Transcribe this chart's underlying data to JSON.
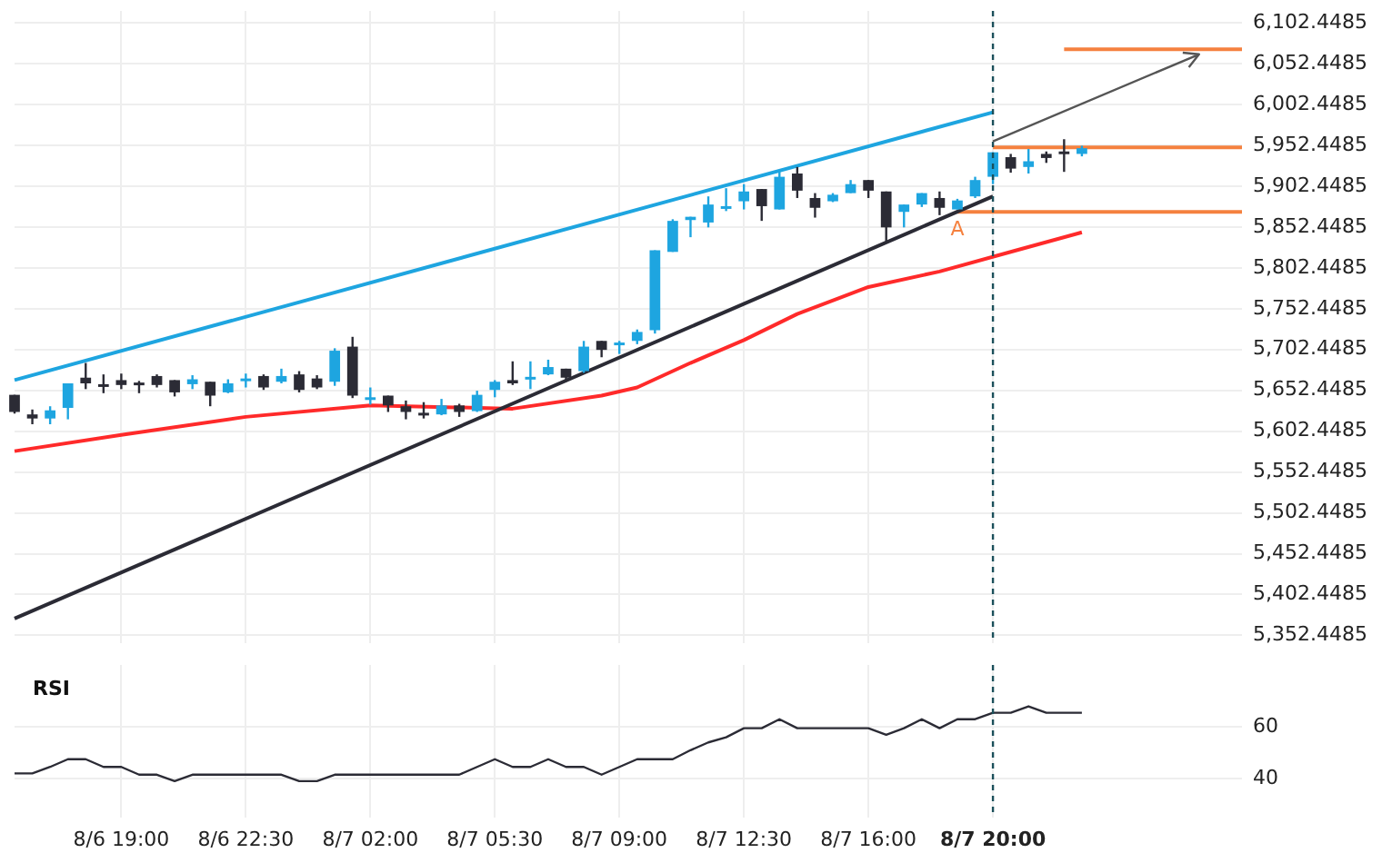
{
  "chart_data": [
    {
      "type": "candlestick",
      "categories": [
        null,
        null,
        null,
        null,
        null,
        null,
        "8/6 19:00",
        null,
        null,
        null,
        null,
        null,
        null,
        "8/6 22:30",
        null,
        null,
        null,
        null,
        null,
        null,
        "8/7 02:00",
        null,
        null,
        null,
        null,
        null,
        null,
        "8/7 05:30",
        null,
        null,
        null,
        null,
        null,
        null,
        "8/7 09:00",
        null,
        null,
        null,
        null,
        null,
        null,
        "8/7 12:30",
        null,
        null,
        null,
        null,
        null,
        null,
        "8/7 16:00",
        null,
        null,
        null,
        null,
        null,
        null,
        "8/7 20:00",
        null,
        null,
        null,
        null,
        null,
        null,
        null,
        null,
        null,
        null,
        null,
        null,
        null,
        null
      ],
      "ohlc": [
        [
          5647,
          5647,
          5624,
          5626
        ],
        [
          5623,
          5629,
          5611,
          5618
        ],
        [
          5618,
          5633,
          5611,
          5628
        ],
        [
          5631,
          5661,
          5617,
          5661
        ],
        [
          5668,
          5686,
          5654,
          5661
        ],
        [
          5660,
          5672,
          5649,
          5659
        ],
        [
          5665,
          5673,
          5654,
          5659
        ],
        [
          5662,
          5664,
          5649,
          5661
        ],
        [
          5670,
          5672,
          5656,
          5659
        ],
        [
          5665,
          5665,
          5645,
          5650
        ],
        [
          5660,
          5671,
          5654,
          5666
        ],
        [
          5663,
          5663,
          5633,
          5646
        ],
        [
          5650,
          5666,
          5649,
          5661
        ],
        [
          5665,
          5673,
          5656,
          5667
        ],
        [
          5670,
          5672,
          5653,
          5656
        ],
        [
          5663,
          5679,
          5661,
          5670
        ],
        [
          5672,
          5676,
          5650,
          5653
        ],
        [
          5667,
          5671,
          5654,
          5656
        ],
        [
          5663,
          5704,
          5658,
          5701
        ],
        [
          5706,
          5718,
          5643,
          5646
        ],
        [
          5642,
          5656,
          5635,
          5644
        ],
        [
          5646,
          5646,
          5626,
          5634
        ],
        [
          5633,
          5640,
          5617,
          5626
        ],
        [
          5625,
          5638,
          5618,
          5624
        ],
        [
          5623,
          5642,
          5622,
          5634
        ],
        [
          5634,
          5636,
          5620,
          5626
        ],
        [
          5627,
          5652,
          5626,
          5647
        ],
        [
          5653,
          5665,
          5644,
          5663
        ],
        [
          5665,
          5688,
          5659,
          5661
        ],
        [
          5667,
          5688,
          5654,
          5669
        ],
        [
          5672,
          5690,
          5671,
          5681
        ],
        [
          5679,
          5679,
          5663,
          5668
        ],
        [
          5676,
          5713,
          5674,
          5706
        ],
        [
          5713,
          5713,
          5693,
          5702
        ],
        [
          5710,
          5713,
          5697,
          5711
        ],
        [
          5713,
          5727,
          5709,
          5724
        ],
        [
          5726,
          5824,
          5722,
          5824
        ],
        [
          5822,
          5862,
          5822,
          5860
        ],
        [
          5861,
          5865,
          5840,
          5865
        ],
        [
          5858,
          5890,
          5852,
          5880
        ],
        [
          5876,
          5900,
          5872,
          5878
        ],
        [
          5884,
          5905,
          5874,
          5896
        ],
        [
          5899,
          5899,
          5860,
          5878
        ],
        [
          5874,
          5921,
          5874,
          5914
        ],
        [
          5918,
          5926,
          5888,
          5897
        ],
        [
          5888,
          5894,
          5864,
          5876
        ],
        [
          5884,
          5894,
          5883,
          5892
        ],
        [
          5894,
          5910,
          5894,
          5905
        ],
        [
          5910,
          5910,
          5888,
          5897
        ],
        [
          5896,
          5896,
          5835,
          5852
        ],
        [
          5871,
          5880,
          5852,
          5880
        ],
        [
          5880,
          5894,
          5877,
          5894
        ],
        [
          5888,
          5896,
          5867,
          5876
        ],
        [
          5874,
          5887,
          5874,
          5885
        ],
        [
          5890,
          5914,
          5888,
          5910
        ],
        [
          5914,
          5944,
          5905,
          5944
        ],
        [
          5938,
          5942,
          5919,
          5924
        ],
        [
          5926,
          5948,
          5918,
          5933
        ],
        [
          5942,
          5945,
          5931,
          5937
        ],
        [
          5945,
          5960,
          5920,
          5944
        ],
        [
          5942,
          5952,
          5939,
          5949
        ],
        null,
        null,
        null,
        null,
        null,
        null,
        null,
        null,
        null
      ],
      "colors": [
        "#2b2b35",
        "#2b2b35",
        "#1ea5e0",
        "#1ea5e0",
        "#2b2b35",
        "#2b2b35",
        "#2b2b35",
        "#2b2b35",
        "#2b2b35",
        "#2b2b35",
        "#1ea5e0",
        "#2b2b35",
        "#1ea5e0",
        "#1ea5e0",
        "#2b2b35",
        "#1ea5e0",
        "#2b2b35",
        "#2b2b35",
        "#1ea5e0",
        "#2b2b35",
        "#1ea5e0",
        "#2b2b35",
        "#2b2b35",
        "#2b2b35",
        "#1ea5e0",
        "#2b2b35",
        "#1ea5e0",
        "#1ea5e0",
        "#2b2b35",
        "#1ea5e0",
        "#1ea5e0",
        "#2b2b35",
        "#1ea5e0",
        "#2b2b35",
        "#1ea5e0",
        "#1ea5e0",
        "#1ea5e0",
        "#1ea5e0",
        "#1ea5e0",
        "#1ea5e0",
        "#1ea5e0",
        "#1ea5e0",
        "#2b2b35",
        "#1ea5e0",
        "#2b2b35",
        "#2b2b35",
        "#1ea5e0",
        "#1ea5e0",
        "#2b2b35",
        "#2b2b35",
        "#1ea5e0",
        "#1ea5e0",
        "#2b2b35",
        "#1ea5e0",
        "#1ea5e0",
        "#1ea5e0",
        "#2b2b35",
        "#1ea5e0",
        "#2b2b35",
        "#2b2b35",
        "#1ea5e0",
        null,
        null,
        null,
        null,
        null,
        null,
        null,
        null,
        null
      ],
      "series": [
        {
          "type": "line",
          "color": "#1ea5e0",
          "values": [
            5665,
            null,
            null,
            null,
            null,
            null,
            null,
            null,
            null,
            null,
            null,
            null,
            null,
            null,
            null,
            null,
            null,
            null,
            null,
            null,
            null,
            null,
            null,
            null,
            null,
            null,
            null,
            null,
            null,
            null,
            null,
            null,
            null,
            null,
            null,
            null,
            null,
            null,
            null,
            null,
            null,
            null,
            null,
            null,
            null,
            null,
            null,
            null,
            null,
            null,
            null,
            null,
            null,
            null,
            null,
            5993,
            null,
            null,
            null,
            null,
            null,
            null,
            null,
            null,
            null,
            null,
            null,
            null,
            null,
            null
          ]
        },
        {
          "type": "line",
          "color": "#2b2b35",
          "values": [
            5373,
            null,
            null,
            null,
            null,
            null,
            null,
            null,
            null,
            null,
            null,
            null,
            null,
            null,
            null,
            null,
            null,
            null,
            null,
            null,
            null,
            null,
            null,
            null,
            null,
            null,
            null,
            null,
            null,
            null,
            null,
            null,
            null,
            null,
            null,
            null,
            null,
            null,
            null,
            null,
            null,
            null,
            null,
            null,
            null,
            null,
            null,
            null,
            null,
            null,
            null,
            null,
            null,
            null,
            null,
            5890,
            null,
            null,
            null,
            null,
            null,
            null,
            null,
            null,
            null,
            null,
            null,
            null,
            null,
            null
          ]
        },
        {
          "type": "line",
          "color": "#ff2a2a",
          "values": [
            5578,
            null,
            null,
            null,
            null,
            null,
            5598,
            null,
            null,
            null,
            null,
            null,
            null,
            5620,
            null,
            null,
            null,
            null,
            null,
            null,
            5634,
            null,
            null,
            null,
            null,
            null,
            null,
            null,
            5630,
            null,
            null,
            null,
            null,
            5646,
            null,
            5656,
            null,
            null,
            5686,
            null,
            null,
            5714,
            null,
            null,
            5746,
            null,
            null,
            null,
            5779,
            null,
            null,
            null,
            5798,
            null,
            null,
            null,
            5822,
            null,
            null,
            null,
            5846,
            null,
            null,
            null,
            null,
            null,
            null,
            null,
            null,
            null
          ]
        },
        {
          "type": "line",
          "color": "#f5813f",
          "values": [
            null,
            null,
            null,
            null,
            null,
            null,
            null,
            null,
            null,
            null,
            null,
            null,
            null,
            null,
            null,
            null,
            null,
            null,
            null,
            null,
            null,
            null,
            null,
            null,
            null,
            null,
            null,
            null,
            null,
            null,
            null,
            null,
            null,
            null,
            null,
            null,
            null,
            null,
            null,
            null,
            null,
            null,
            null,
            null,
            null,
            null,
            null,
            null,
            null,
            null,
            null,
            null,
            null,
            5871,
            null,
            null,
            null,
            null,
            null,
            null,
            null,
            null,
            null,
            null,
            null,
            null,
            null,
            null,
            null,
            5871
          ]
        },
        {
          "type": "line",
          "color": "#f5813f",
          "values": [
            null,
            null,
            null,
            null,
            null,
            null,
            null,
            null,
            null,
            null,
            null,
            null,
            null,
            null,
            null,
            null,
            null,
            null,
            null,
            null,
            null,
            null,
            null,
            null,
            null,
            null,
            null,
            null,
            null,
            null,
            null,
            null,
            null,
            null,
            null,
            null,
            null,
            null,
            null,
            null,
            null,
            null,
            null,
            null,
            null,
            null,
            null,
            null,
            null,
            null,
            null,
            null,
            null,
            null,
            null,
            5950,
            null,
            null,
            null,
            null,
            null,
            null,
            null,
            null,
            null,
            null,
            null,
            null,
            null,
            5950
          ]
        },
        {
          "type": "line",
          "color": "#f5813f",
          "values": [
            null,
            null,
            null,
            null,
            null,
            null,
            null,
            null,
            null,
            null,
            null,
            null,
            null,
            null,
            null,
            null,
            null,
            null,
            null,
            null,
            null,
            null,
            null,
            null,
            null,
            null,
            null,
            null,
            null,
            null,
            null,
            null,
            null,
            null,
            null,
            null,
            null,
            null,
            null,
            null,
            null,
            null,
            null,
            null,
            null,
            null,
            null,
            null,
            null,
            null,
            null,
            null,
            null,
            null,
            null,
            null,
            null,
            null,
            null,
            6070,
            null,
            null,
            null,
            null,
            null,
            null,
            null,
            null,
            null,
            6070
          ]
        }
      ],
      "ylim": [
        5343,
        6117
      ],
      "yticks": [
        {
          "value": 5352.4485,
          "label": "5,352.4485"
        },
        {
          "value": 5402.4485,
          "label": "5,402.4485"
        },
        {
          "value": 5452.4485,
          "label": "5,452.4485"
        },
        {
          "value": 5502.4485,
          "label": "5,502.4485"
        },
        {
          "value": 5552.4485,
          "label": "5,552.4485"
        },
        {
          "value": 5602.4485,
          "label": "5,602.4485"
        },
        {
          "value": 5652.4485,
          "label": "5,652.4485"
        },
        {
          "value": 5702.4485,
          "label": "5,702.4485"
        },
        {
          "value": 5752.4485,
          "label": "5,752.4485"
        },
        {
          "value": 5802.4485,
          "label": "5,802.4485"
        },
        {
          "value": 5852.4485,
          "label": "5,852.4485"
        },
        {
          "value": 5902.4485,
          "label": "5,902.4485"
        },
        {
          "value": 5952.4485,
          "label": "5,952.4485"
        },
        {
          "value": 6002.4485,
          "label": "6,002.4485"
        },
        {
          "value": 6052.4485,
          "label": "6,052.4485"
        },
        {
          "value": 6102.4485,
          "label": "6,102.4485"
        }
      ],
      "ref_lines": [
        {
          "axis": "x",
          "value": "8/7 20:00",
          "color": "#1b4f5a",
          "line_style": "dashed"
        }
      ],
      "annotations": [
        "A"
      ],
      "grid": true,
      "legend": false,
      "tick_labels": "y"
    },
    {
      "type": "line",
      "title": "RSI",
      "categories": [
        null,
        null,
        null,
        null,
        null,
        null,
        "8/6 19:00",
        null,
        null,
        null,
        null,
        null,
        null,
        "8/6 22:30",
        null,
        null,
        null,
        null,
        null,
        null,
        "8/7 02:00",
        null,
        null,
        null,
        null,
        null,
        null,
        "8/7 05:30",
        null,
        null,
        null,
        null,
        null,
        null,
        "8/7 09:00",
        null,
        null,
        null,
        null,
        null,
        null,
        "8/7 12:30",
        null,
        null,
        null,
        null,
        null,
        null,
        "8/7 16:00",
        null,
        null,
        null,
        null,
        null,
        null,
        "8/7 20:00",
        null,
        null,
        null,
        null,
        null,
        null,
        null,
        null,
        null,
        null,
        null,
        null,
        null,
        null
      ],
      "values": [
        42,
        42,
        44.5,
        47.5,
        47.5,
        44.5,
        44.5,
        41.5,
        41.5,
        39,
        41.5,
        41.5,
        41.5,
        41.5,
        41.5,
        41.5,
        39,
        39,
        41.5,
        41.5,
        41.5,
        41.5,
        41.5,
        41.5,
        41.5,
        41.5,
        44.5,
        47.5,
        44.5,
        44.5,
        47.5,
        44.5,
        44.5,
        41.5,
        44.5,
        47.5,
        47.5,
        47.5,
        51,
        54,
        56,
        59.5,
        59.5,
        63,
        59.5,
        59.5,
        59.5,
        59.5,
        59.5,
        57,
        59.5,
        63,
        59.5,
        63,
        63,
        65.5,
        65.5,
        68,
        65.5,
        65.5,
        65.5,
        null,
        null,
        null,
        null,
        null,
        null,
        null,
        null,
        null
      ],
      "color": "#2b2b35",
      "ylim": [
        25,
        84
      ],
      "yticks": [
        40,
        60
      ],
      "ref_lines": [
        {
          "axis": "x",
          "value": "8/7 20:00",
          "color": "#1b4f5a",
          "line_style": "dashed"
        }
      ],
      "grid": true,
      "legend": false,
      "marker": "none",
      "line_style": "solid"
    }
  ]
}
